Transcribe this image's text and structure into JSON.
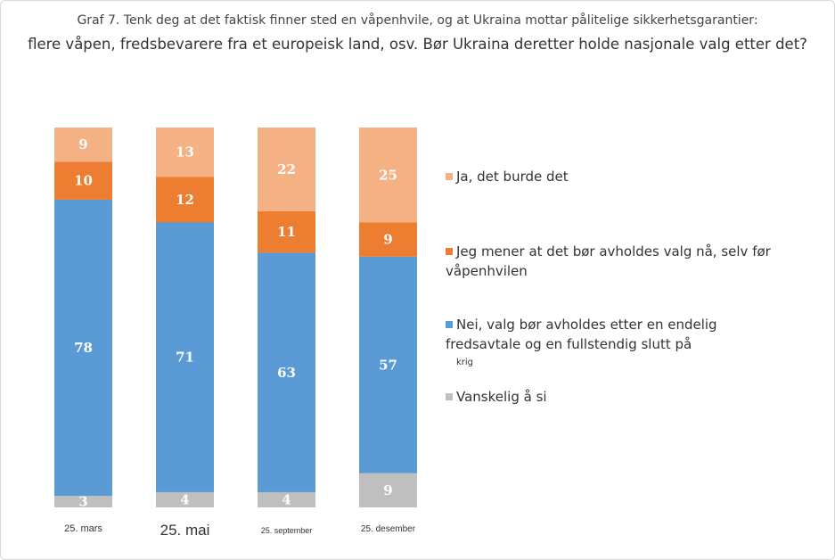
{
  "title_line1": "Graf 7. Tenk deg at det faktisk finner sted en våpenhvile, og at Ukraina mottar pålitelige sikkerhetsgarantier:",
  "title_line2": "flere våpen, fredsbevarere fra et europeisk land, osv. Bør Ukraina deretter holde nasjonale valg etter det?",
  "legend": [
    {
      "label": "Ja, det burde det",
      "color": "#f4b183"
    },
    {
      "label": "Jeg mener at det bør avholdes valg nå, selv før våpenhvilen",
      "color": "#ed7d31"
    },
    {
      "label": "Nei, valg bør avholdes etter en endelig fredsavtale og en fullstendig slutt på",
      "note": "krig",
      "color": "#5b9bd5"
    },
    {
      "label": "Vanskelig å si",
      "color": "#bfbfbf"
    }
  ],
  "chart_data": {
    "type": "bar",
    "stacked": true,
    "categories": [
      "25. mars",
      "25. mai",
      "25. september",
      "25. desember"
    ],
    "series": [
      {
        "name": "Vanskelig å si",
        "color": "#bfbfbf",
        "values": [
          3,
          4,
          4,
          9
        ]
      },
      {
        "name": "Nei, valg bør avholdes etter en endelig fredsavtale og en fullstendig slutt på krig",
        "color": "#5b9bd5",
        "values": [
          78,
          71,
          63,
          57
        ]
      },
      {
        "name": "Jeg mener at det bør avholdes valg nå, selv før våpenhvilen",
        "color": "#ed7d31",
        "values": [
          10,
          12,
          11,
          9
        ]
      },
      {
        "name": "Ja, det burde det",
        "color": "#f4b183",
        "values": [
          9,
          13,
          22,
          25
        ]
      }
    ],
    "ylim": [
      0,
      100
    ],
    "grid": false,
    "legend_position": "right"
  }
}
